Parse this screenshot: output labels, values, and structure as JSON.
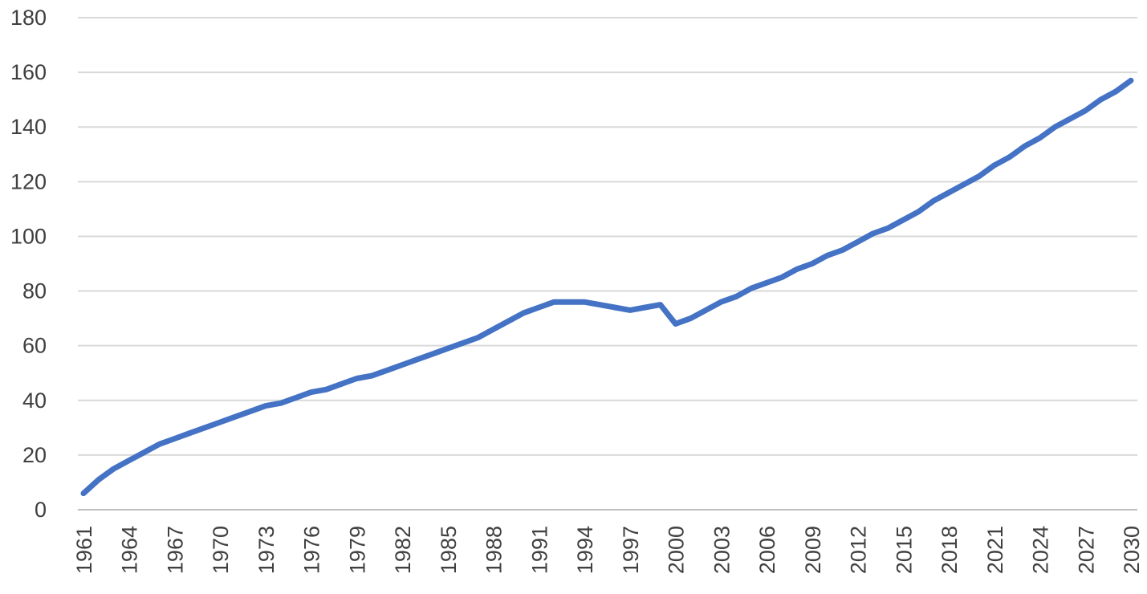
{
  "chart_data": {
    "type": "line",
    "title": "",
    "xlabel": "",
    "ylabel": "",
    "ylim": [
      0,
      180
    ],
    "y_ticks": [
      "0",
      "20",
      "40",
      "60",
      "80",
      "100",
      "120",
      "140",
      "160",
      "180"
    ],
    "x_tick_labels": [
      "1961",
      "1964",
      "1967",
      "1970",
      "1973",
      "1976",
      "1979",
      "1982",
      "1985",
      "1988",
      "1991",
      "1994",
      "1997",
      "2000",
      "2003",
      "2006",
      "2009",
      "2012",
      "2015",
      "2018",
      "2021",
      "2024",
      "2027",
      "2030"
    ],
    "grid": true,
    "legend": "none",
    "line_color": "#4472c4",
    "series": [
      {
        "x": [
          1961,
          1962,
          1963,
          1964,
          1965,
          1966,
          1967,
          1968,
          1969,
          1970,
          1971,
          1972,
          1973,
          1974,
          1975,
          1976,
          1977,
          1978,
          1979,
          1980,
          1981,
          1982,
          1983,
          1984,
          1985,
          1986,
          1987,
          1988,
          1989,
          1990,
          1991,
          1992,
          1993,
          1994,
          1995,
          1996,
          1997,
          1998,
          1999,
          2000,
          2001,
          2002,
          2003,
          2004,
          2005,
          2006,
          2007,
          2008,
          2009,
          2010,
          2011,
          2012,
          2013,
          2014,
          2015,
          2016,
          2017,
          2018,
          2019,
          2020,
          2021,
          2022,
          2023,
          2024,
          2025,
          2026,
          2027,
          2028,
          2029,
          2030
        ],
        "values": [
          6,
          11,
          15,
          18,
          21,
          24,
          26,
          28,
          30,
          32,
          34,
          36,
          38,
          39,
          41,
          43,
          44,
          46,
          48,
          49,
          51,
          53,
          55,
          57,
          59,
          61,
          63,
          66,
          69,
          72,
          74,
          76,
          76,
          76,
          75,
          74,
          73,
          74,
          75,
          68,
          70,
          73,
          76,
          78,
          81,
          83,
          85,
          88,
          90,
          93,
          95,
          98,
          101,
          103,
          106,
          109,
          113,
          116,
          119,
          122,
          126,
          129,
          133,
          136,
          140,
          143,
          146,
          150,
          153,
          157
        ]
      }
    ]
  }
}
